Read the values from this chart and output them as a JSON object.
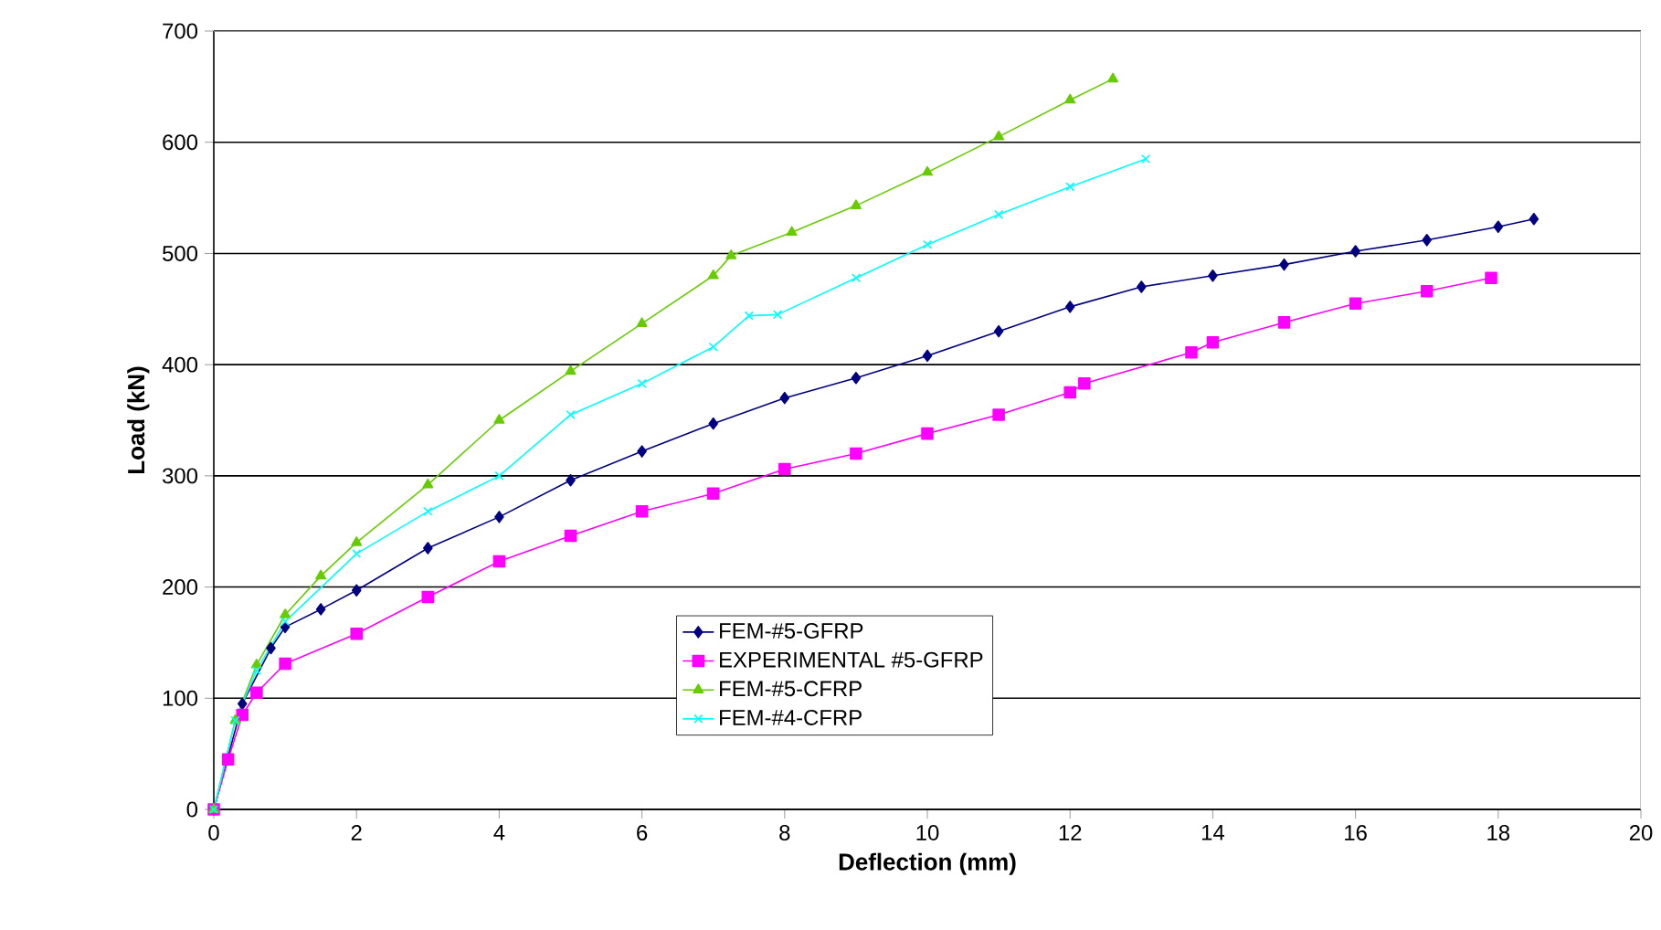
{
  "chart_data": {
    "type": "line",
    "xlabel": "Deflection (mm)",
    "ylabel": "Load (kN)",
    "xlim": [
      0,
      20
    ],
    "xticks": [
      0,
      2,
      4,
      6,
      8,
      10,
      12,
      14,
      16,
      18,
      20
    ],
    "ylim": [
      0,
      700
    ],
    "yticks": [
      0,
      100,
      200,
      300,
      400,
      500,
      600,
      700
    ],
    "grid": "y",
    "legend": "bottom",
    "series": [
      {
        "name": "FEM-#5-GFRP",
        "color": "#000080",
        "marker": "diamond",
        "x": [
          0,
          0.4,
          0.8,
          1,
          1.5,
          2,
          3,
          4,
          5,
          6,
          7,
          8,
          9,
          10,
          11,
          12,
          13,
          14,
          15,
          16,
          17,
          18,
          18.5
        ],
        "values": [
          0,
          95,
          145,
          164,
          180,
          197,
          235,
          263,
          296,
          322,
          347,
          370,
          388,
          408,
          430,
          452,
          470,
          480,
          490,
          502,
          512,
          524,
          531
        ]
      },
      {
        "name": "EXPERIMENTAL #5-GFRP",
        "color": "#ff00ff",
        "marker": "square",
        "x": [
          0,
          0.2,
          0.4,
          0.6,
          1,
          2,
          3,
          4,
          5,
          6,
          7,
          8,
          9,
          10,
          11,
          12,
          12.2,
          13.7,
          14,
          15,
          16,
          17,
          17.9
        ],
        "values": [
          0,
          45,
          85,
          105,
          131,
          158,
          191,
          223,
          246,
          268,
          284,
          306,
          320,
          338,
          355,
          375,
          383,
          411,
          420,
          438,
          455,
          466,
          478
        ]
      },
      {
        "name": "FEM-#5-CFRP",
        "color": "#66cc00",
        "marker": "triangle",
        "x": [
          0,
          0.3,
          0.6,
          1,
          1.5,
          2,
          3,
          4,
          5,
          6,
          7,
          7.25,
          8.1,
          9,
          10,
          11,
          12,
          12.6
        ],
        "values": [
          0,
          80,
          130,
          175,
          210,
          240,
          292,
          350,
          394,
          437,
          480,
          498,
          519,
          543,
          573,
          605,
          638,
          657
        ]
      },
      {
        "name": "FEM-#4-CFRP",
        "color": "#00ffff",
        "marker": "cross",
        "x": [
          0,
          0.3,
          0.6,
          1,
          2,
          3,
          4,
          5,
          6,
          7,
          7.5,
          7.9,
          9,
          10,
          11,
          12,
          13.06
        ],
        "values": [
          0,
          80,
          125,
          169,
          230,
          268,
          300,
          355,
          383,
          416,
          444,
          445,
          478,
          508,
          535,
          560,
          585
        ]
      }
    ]
  }
}
